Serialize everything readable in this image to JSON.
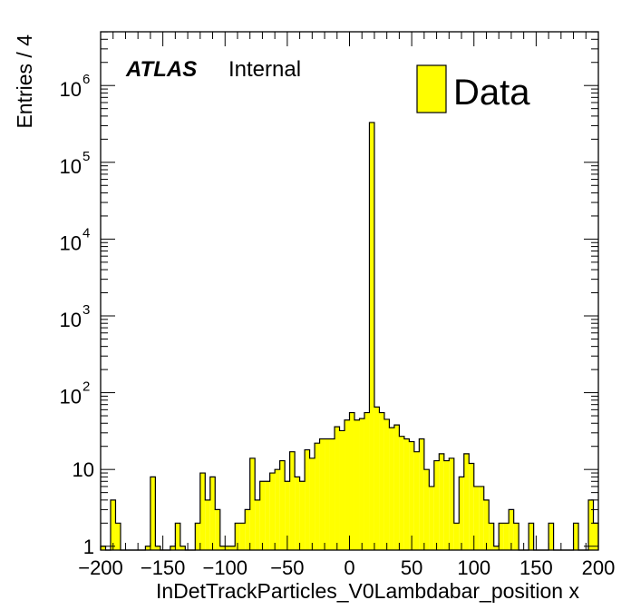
{
  "chart_data": {
    "type": "histogram",
    "xlabel": "InDetTrackParticles_V0Lambdabar_position x",
    "ylabel": "Entries / 4",
    "xlim": [
      -200,
      200
    ],
    "ylog": true,
    "ylim_exponent": [
      -0.05,
      6.7
    ],
    "bin_width": 4,
    "fill_color": "#ffff00",
    "line_color": "#000000",
    "x_ticks": [
      -200,
      -150,
      -100,
      -50,
      0,
      50,
      100,
      150,
      200
    ],
    "x_tick_labels": [
      "−200",
      "−150",
      "−100",
      "−50",
      "0",
      "50",
      "100",
      "150",
      "200"
    ],
    "y_ticks": [
      {
        "value": 1,
        "base": "1",
        "exp": ""
      },
      {
        "value": 10,
        "base": "10",
        "exp": ""
      },
      {
        "value": 100,
        "base": "10",
        "exp": "2"
      },
      {
        "value": 1000,
        "base": "10",
        "exp": "3"
      },
      {
        "value": 10000,
        "base": "10",
        "exp": "4"
      },
      {
        "value": 100000,
        "base": "10",
        "exp": "5"
      },
      {
        "value": 1000000,
        "base": "10",
        "exp": "6"
      }
    ],
    "atlas_label": "ATLAS",
    "atlas_sublabel": "Internal",
    "legend_entry": "Data",
    "legend_placement": "top-right",
    "bins": [
      {
        "x": -200,
        "y": 1
      },
      {
        "x": -196,
        "y": 0
      },
      {
        "x": -192,
        "y": 4
      },
      {
        "x": -188,
        "y": 2
      },
      {
        "x": -184,
        "y": 0
      },
      {
        "x": -180,
        "y": 0
      },
      {
        "x": -176,
        "y": 0
      },
      {
        "x": -172,
        "y": 0
      },
      {
        "x": -168,
        "y": 0
      },
      {
        "x": -164,
        "y": 1
      },
      {
        "x": -160,
        "y": 8
      },
      {
        "x": -156,
        "y": 1
      },
      {
        "x": -152,
        "y": 0
      },
      {
        "x": -148,
        "y": 0
      },
      {
        "x": -144,
        "y": 1
      },
      {
        "x": -140,
        "y": 2
      },
      {
        "x": -136,
        "y": 1
      },
      {
        "x": -132,
        "y": 0
      },
      {
        "x": -128,
        "y": 0
      },
      {
        "x": -124,
        "y": 2
      },
      {
        "x": -120,
        "y": 9
      },
      {
        "x": -116,
        "y": 4
      },
      {
        "x": -112,
        "y": 8
      },
      {
        "x": -108,
        "y": 3
      },
      {
        "x": -104,
        "y": 1
      },
      {
        "x": -100,
        "y": 1
      },
      {
        "x": -96,
        "y": 1
      },
      {
        "x": -92,
        "y": 2
      },
      {
        "x": -88,
        "y": 2
      },
      {
        "x": -84,
        "y": 3
      },
      {
        "x": -80,
        "y": 14
      },
      {
        "x": -76,
        "y": 4
      },
      {
        "x": -72,
        "y": 7
      },
      {
        "x": -68,
        "y": 7
      },
      {
        "x": -64,
        "y": 9
      },
      {
        "x": -60,
        "y": 10
      },
      {
        "x": -56,
        "y": 13
      },
      {
        "x": -52,
        "y": 7
      },
      {
        "x": -48,
        "y": 17
      },
      {
        "x": -44,
        "y": 8
      },
      {
        "x": -40,
        "y": 7
      },
      {
        "x": -36,
        "y": 18
      },
      {
        "x": -32,
        "y": 14
      },
      {
        "x": -28,
        "y": 22
      },
      {
        "x": -24,
        "y": 25
      },
      {
        "x": -20,
        "y": 25
      },
      {
        "x": -16,
        "y": 25
      },
      {
        "x": -12,
        "y": 36
      },
      {
        "x": -8,
        "y": 32
      },
      {
        "x": -4,
        "y": 44
      },
      {
        "x": 0,
        "y": 55
      },
      {
        "x": 4,
        "y": 44
      },
      {
        "x": 8,
        "y": 46
      },
      {
        "x": 12,
        "y": 55
      },
      {
        "x": 16,
        "y": 330000
      },
      {
        "x": 20,
        "y": 65
      },
      {
        "x": 24,
        "y": 55
      },
      {
        "x": 28,
        "y": 45
      },
      {
        "x": 32,
        "y": 35
      },
      {
        "x": 36,
        "y": 38
      },
      {
        "x": 40,
        "y": 27
      },
      {
        "x": 44,
        "y": 25
      },
      {
        "x": 48,
        "y": 23
      },
      {
        "x": 52,
        "y": 17
      },
      {
        "x": 56,
        "y": 25
      },
      {
        "x": 60,
        "y": 10
      },
      {
        "x": 64,
        "y": 6
      },
      {
        "x": 68,
        "y": 13
      },
      {
        "x": 72,
        "y": 16
      },
      {
        "x": 76,
        "y": 13
      },
      {
        "x": 80,
        "y": 14
      },
      {
        "x": 84,
        "y": 2
      },
      {
        "x": 88,
        "y": 8
      },
      {
        "x": 92,
        "y": 16
      },
      {
        "x": 96,
        "y": 12
      },
      {
        "x": 100,
        "y": 6
      },
      {
        "x": 104,
        "y": 6
      },
      {
        "x": 108,
        "y": 4
      },
      {
        "x": 112,
        "y": 2
      },
      {
        "x": 116,
        "y": 1
      },
      {
        "x": 120,
        "y": 2
      },
      {
        "x": 124,
        "y": 2
      },
      {
        "x": 128,
        "y": 3
      },
      {
        "x": 132,
        "y": 2
      },
      {
        "x": 136,
        "y": 0
      },
      {
        "x": 140,
        "y": 0
      },
      {
        "x": 144,
        "y": 2
      },
      {
        "x": 148,
        "y": 0
      },
      {
        "x": 152,
        "y": 0
      },
      {
        "x": 156,
        "y": 0
      },
      {
        "x": 160,
        "y": 2
      },
      {
        "x": 164,
        "y": 0
      },
      {
        "x": 168,
        "y": 0
      },
      {
        "x": 172,
        "y": 0
      },
      {
        "x": 176,
        "y": 0
      },
      {
        "x": 180,
        "y": 2
      },
      {
        "x": 184,
        "y": 0
      },
      {
        "x": 188,
        "y": 0
      },
      {
        "x": 192,
        "y": 4
      },
      {
        "x": 196,
        "y": 2
      }
    ]
  }
}
